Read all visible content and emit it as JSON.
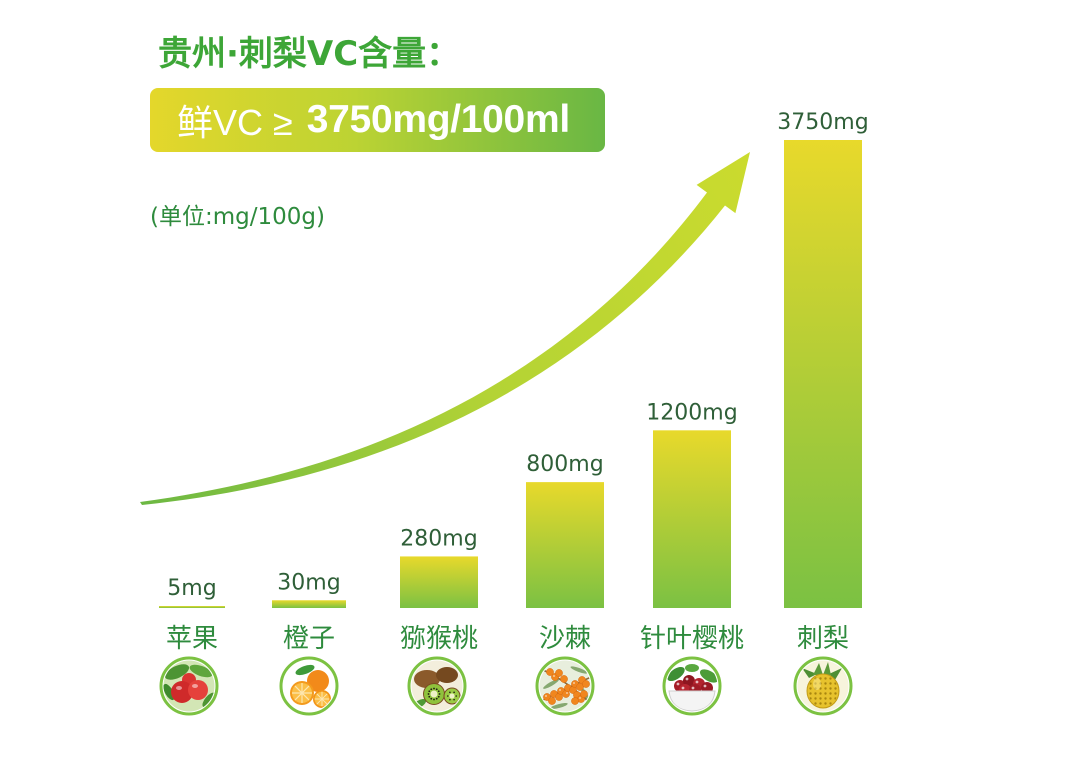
{
  "banner": {
    "prefix": "鲜VC ≥",
    "value": "3750mg/100ml"
  },
  "colors": {
    "title_green": "#3da637",
    "label_green": "#2e8b3d",
    "value_text": "#2f5f38",
    "bar_top": "#e8d92b",
    "bar_bottom": "#7bc143",
    "banner_start": "#e4d72b",
    "banner_end": "#69b744",
    "icon_ring": "#7cc242"
  },
  "icons": [
    "apple-icon",
    "orange-icon",
    "kiwi-icon",
    "sea-buckthorn-icon",
    "acerola-cherry-icon",
    "roxburgh-rose-icon"
  ],
  "chart_data": {
    "type": "bar",
    "title": "贵州·刺梨VC含量：",
    "unit_label": "(单位:mg/100g)",
    "categories": [
      "苹果",
      "橙子",
      "猕猴桃",
      "沙棘",
      "针叶樱桃",
      "刺梨"
    ],
    "values": [
      5,
      30,
      280,
      800,
      1200,
      3750
    ],
    "data_labels": [
      "5mg",
      "30mg",
      "280mg",
      "800mg",
      "1200mg",
      "3750mg"
    ],
    "grid": false
  }
}
